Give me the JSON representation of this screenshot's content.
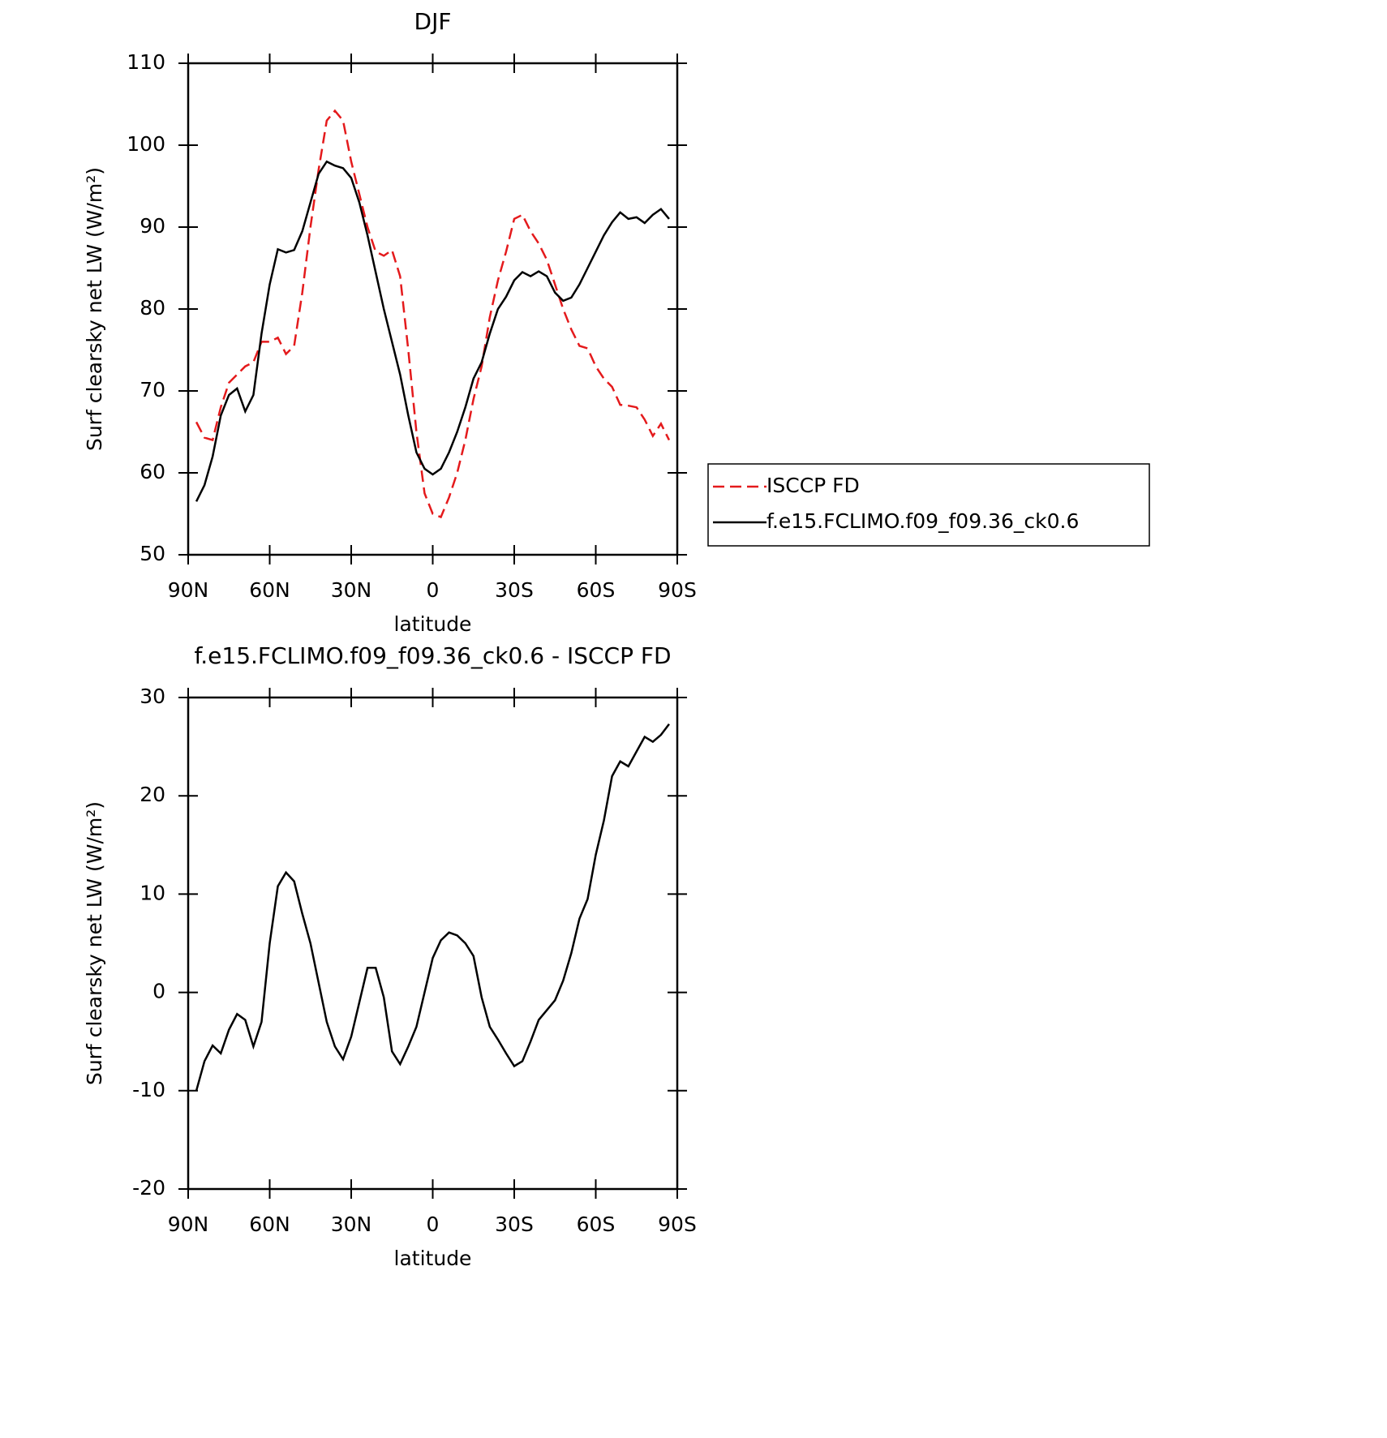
{
  "chart_data": [
    {
      "type": "line",
      "title": "DJF",
      "xlabel": "latitude",
      "ylabel": "Surf clearsky net LW (W/m²)",
      "x": [
        87,
        84,
        81,
        78,
        75,
        72,
        69,
        66,
        63,
        60,
        57,
        54,
        51,
        48,
        45,
        42,
        39,
        36,
        33,
        30,
        27,
        24,
        21,
        18,
        15,
        12,
        9,
        6,
        3,
        0,
        -3,
        -6,
        -9,
        -12,
        -15,
        -18,
        -21,
        -24,
        -27,
        -30,
        -33,
        -36,
        -39,
        -42,
        -45,
        -48,
        -51,
        -54,
        -57,
        -60,
        -63,
        -66,
        -69,
        -72,
        -75,
        -78,
        -81,
        -84,
        -87
      ],
      "series": [
        {
          "name": "ISCCP FD",
          "color": "#e41a1c",
          "dash": true,
          "values": [
            66.2,
            64.3,
            64,
            68,
            71,
            72,
            73,
            73.5,
            76,
            76,
            76.5,
            74.5,
            75.5,
            82,
            90,
            97,
            103,
            104.2,
            103,
            98,
            94,
            90,
            87,
            86.5,
            87.2,
            84,
            75,
            65,
            57.5,
            55,
            54.6,
            57,
            60,
            64,
            69,
            73,
            79,
            83.5,
            87,
            91,
            91.5,
            89.5,
            88,
            86,
            83,
            80,
            77.5,
            75.5,
            75.2,
            73,
            71.5,
            70.5,
            68.3,
            68.2,
            68,
            66.5,
            64.5,
            66,
            64
          ]
        },
        {
          "name": "f.e15.FCLIMO.f09_f09.36_ck0.6",
          "color": "#000000",
          "dash": false,
          "values": [
            56.5,
            58.5,
            62,
            67,
            69.5,
            70.3,
            67.5,
            69.5,
            77,
            83,
            87.3,
            86.9,
            87.2,
            89.5,
            93,
            96.5,
            98,
            97.5,
            97.2,
            96,
            93,
            89,
            84.5,
            80,
            76,
            72,
            67,
            62.5,
            60.5,
            59.8,
            60.5,
            62.5,
            65,
            68,
            71.5,
            73.5,
            77,
            80,
            81.5,
            83.5,
            84.5,
            84,
            84.6,
            84,
            82,
            81,
            81.4,
            83,
            85,
            87,
            89,
            90.6,
            91.8,
            91,
            91.2,
            90.5,
            91.5,
            92.2,
            91
          ]
        }
      ],
      "xlim": [
        90,
        -90
      ],
      "xticks": [
        {
          "value": 90,
          "label": "90N"
        },
        {
          "value": 60,
          "label": "60N"
        },
        {
          "value": 30,
          "label": "30N"
        },
        0,
        {
          "value": -30,
          "label": "30S"
        },
        {
          "value": -60,
          "label": "60S"
        },
        {
          "value": -90,
          "label": "90S"
        }
      ],
      "ylim": [
        50,
        110
      ],
      "yticks": [
        50,
        60,
        70,
        80,
        90,
        100,
        110
      ],
      "legend": "right"
    },
    {
      "type": "line",
      "title": "f.e15.FCLIMO.f09_f09.36_ck0.6 - ISCCP FD",
      "xlabel": "latitude",
      "ylabel": "Surf clearsky net LW (W/m²)",
      "x": [
        87,
        84,
        81,
        78,
        75,
        72,
        69,
        66,
        63,
        60,
        57,
        54,
        51,
        48,
        45,
        42,
        39,
        36,
        33,
        30,
        27,
        24,
        21,
        18,
        15,
        12,
        9,
        6,
        3,
        0,
        -3,
        -6,
        -9,
        -12,
        -15,
        -18,
        -21,
        -24,
        -27,
        -30,
        -33,
        -36,
        -39,
        -42,
        -45,
        -48,
        -51,
        -54,
        -57,
        -60,
        -63,
        -66,
        -69,
        -72,
        -75,
        -78,
        -81,
        -84,
        -87
      ],
      "series": [
        {
          "color": "#000000",
          "dash": false,
          "values": [
            -10,
            -7,
            -5.4,
            -6.2,
            -3.8,
            -2.2,
            -2.8,
            -5.5,
            -3,
            5,
            10.8,
            12.2,
            11.3,
            8,
            5,
            1,
            -3,
            -5.5,
            -6.8,
            -4.5,
            -1,
            2.5,
            2.5,
            -0.5,
            -6,
            -7.3,
            -5.5,
            -3.5,
            0,
            3.5,
            5.3,
            6.1,
            5.8,
            5,
            3.7,
            -0.5,
            -3.5,
            -4.8,
            -6.2,
            -7.5,
            -7,
            -5,
            -2.8,
            -1.8,
            -0.8,
            1.2,
            4,
            7.5,
            9.5,
            14,
            17.5,
            22,
            23.5,
            23,
            24.5,
            26,
            25.5,
            26.2,
            27.3
          ]
        }
      ],
      "xlim": [
        90,
        -90
      ],
      "xticks": [
        {
          "value": 90,
          "label": "90N"
        },
        {
          "value": 60,
          "label": "60N"
        },
        {
          "value": 30,
          "label": "30N"
        },
        0,
        {
          "value": -30,
          "label": "30S"
        },
        {
          "value": -60,
          "label": "60S"
        },
        {
          "value": -90,
          "label": "90S"
        }
      ],
      "ylim": [
        -20,
        30
      ],
      "yticks": [
        -20,
        -10,
        0,
        10,
        20,
        30
      ]
    }
  ]
}
